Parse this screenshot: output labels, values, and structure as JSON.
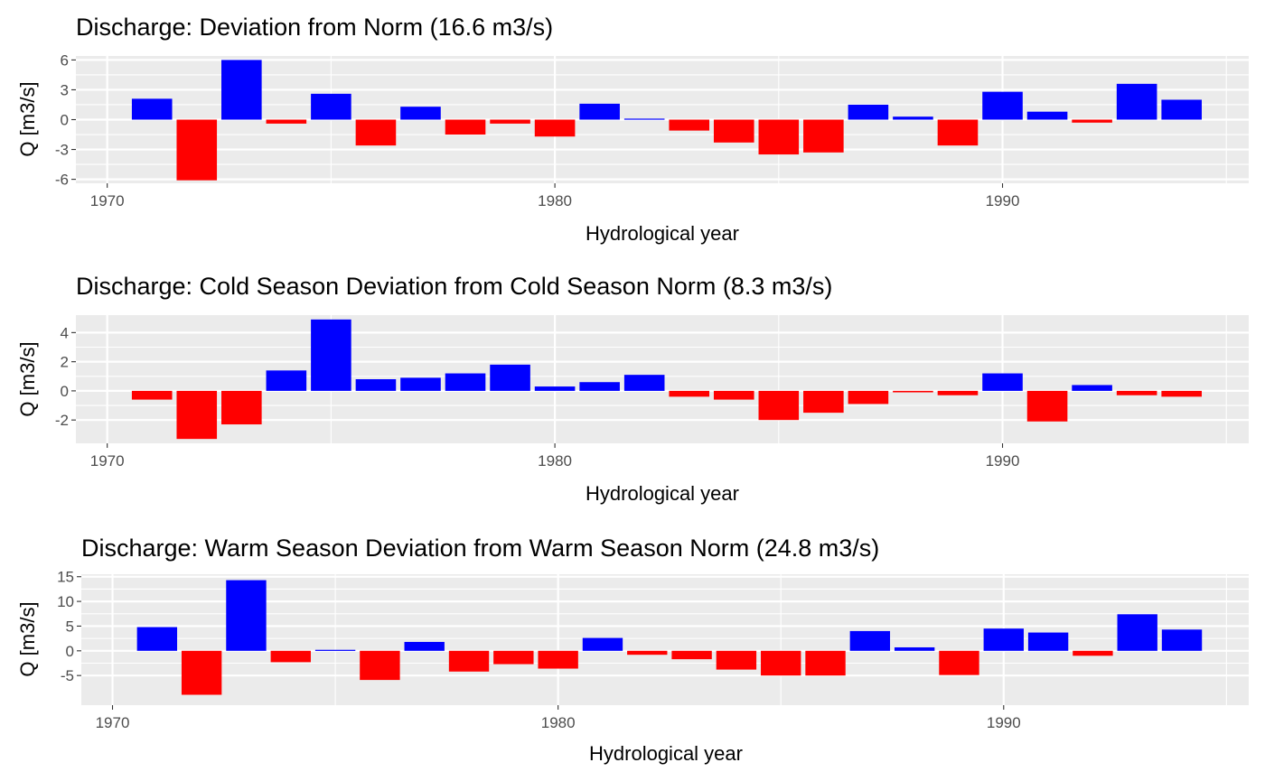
{
  "colors": {
    "positive": "#0000FF",
    "negative": "#FF0000"
  },
  "chart_data": [
    {
      "type": "bar",
      "title": "Discharge: Deviation from Norm (16.6 m3/s)",
      "xlabel": "Hydrological year",
      "ylabel": "Q [m3/s]",
      "xlim": [
        1969.3,
        1995.5
      ],
      "ylim": [
        -6.4,
        6.4
      ],
      "xticks": [
        1970,
        1980,
        1990
      ],
      "xtick_labels": [
        "1970",
        "1980",
        "1990"
      ],
      "yticks": [
        -6,
        -3,
        0,
        3,
        6
      ],
      "ytick_labels": [
        "-6",
        "-3",
        "0",
        "3",
        "6"
      ],
      "grid": true,
      "legend": "none",
      "x": [
        1971,
        1972,
        1973,
        1974,
        1975,
        1976,
        1977,
        1978,
        1979,
        1980,
        1981,
        1982,
        1983,
        1984,
        1985,
        1986,
        1987,
        1988,
        1989,
        1990,
        1991,
        1992,
        1993,
        1994
      ],
      "values": [
        2.1,
        -6.1,
        6.0,
        -0.4,
        2.6,
        -2.6,
        1.3,
        -1.5,
        -0.4,
        -1.7,
        1.6,
        0.1,
        -1.1,
        -2.3,
        -3.5,
        -3.3,
        1.5,
        0.3,
        -2.6,
        2.8,
        0.8,
        -0.3,
        3.6,
        2.0
      ]
    },
    {
      "type": "bar",
      "title": "Discharge: Cold Season Deviation from Cold Season Norm (8.3 m3/s)",
      "xlabel": "Hydrological year",
      "ylabel": "Q [m3/s]",
      "xlim": [
        1969.3,
        1995.5
      ],
      "ylim": [
        -3.6,
        5.2
      ],
      "xticks": [
        1970,
        1980,
        1990
      ],
      "xtick_labels": [
        "1970",
        "1980",
        "1990"
      ],
      "yticks": [
        -2,
        0,
        2,
        4
      ],
      "ytick_labels": [
        "-2",
        "0",
        "2",
        "4"
      ],
      "grid": true,
      "legend": "none",
      "x": [
        1971,
        1972,
        1973,
        1974,
        1975,
        1976,
        1977,
        1978,
        1979,
        1980,
        1981,
        1982,
        1983,
        1984,
        1985,
        1986,
        1987,
        1988,
        1989,
        1990,
        1991,
        1992,
        1993,
        1994
      ],
      "values": [
        -0.6,
        -3.3,
        -2.3,
        1.4,
        4.9,
        0.8,
        0.9,
        1.2,
        1.8,
        0.3,
        0.6,
        1.1,
        -0.4,
        -0.6,
        -2.0,
        -1.5,
        -0.9,
        -0.1,
        -0.3,
        1.2,
        -2.1,
        0.4,
        -0.3,
        -0.4
      ]
    },
    {
      "type": "bar",
      "title": "Discharge: Warm Season Deviation from Warm Season Norm (24.8 m3/s)",
      "xlabel": "Hydrological year",
      "ylabel": "Q [m3/s]",
      "xlim": [
        1969.3,
        1995.5
      ],
      "ylim": [
        -11,
        15.5
      ],
      "xticks": [
        1970,
        1980,
        1990
      ],
      "xtick_labels": [
        "1970",
        "1980",
        "1990"
      ],
      "yticks": [
        -5,
        0,
        5,
        10,
        15
      ],
      "ytick_labels": [
        "-5",
        "0",
        "5",
        "10",
        "15"
      ],
      "grid": true,
      "legend": "none",
      "x": [
        1971,
        1972,
        1973,
        1974,
        1975,
        1976,
        1977,
        1978,
        1979,
        1980,
        1981,
        1982,
        1983,
        1984,
        1985,
        1986,
        1987,
        1988,
        1989,
        1990,
        1991,
        1992,
        1993,
        1994
      ],
      "values": [
        4.8,
        -8.9,
        14.3,
        -2.3,
        0.2,
        -5.9,
        1.8,
        -4.2,
        -2.7,
        -3.6,
        2.6,
        -0.8,
        -1.7,
        -3.8,
        -5.0,
        -5.0,
        4.0,
        0.7,
        -4.9,
        4.5,
        3.7,
        -1.0,
        7.4,
        4.3
      ]
    }
  ]
}
